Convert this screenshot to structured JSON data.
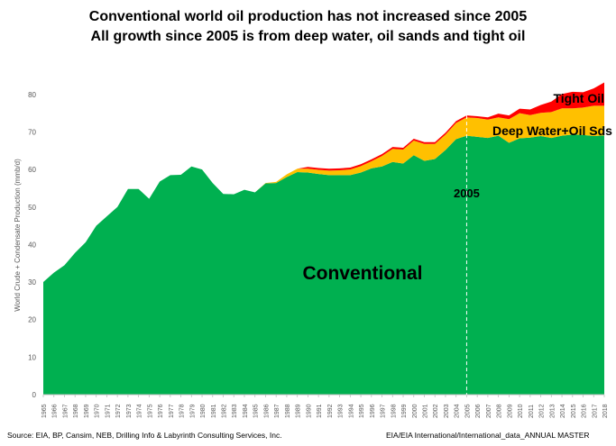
{
  "title_line1": "Conventional world oil production has not increased since 2005",
  "title_line2": "All growth since 2005 is from deep water, oil sands and tight oil",
  "footer_left": "Source:  EIA, BP, Cansim, NEB,  Drilling  Info &  Labyrinth Consulting  Services, Inc.",
  "footer_right": "EIA/EIA International/International_data_ANNUAL  MASTER",
  "chart_data": {
    "type": "area",
    "stacked": true,
    "title": "",
    "xlabel": "",
    "ylabel": "World Crude + Condensate Production  (mmb/d)",
    "ylim": [
      0,
      85
    ],
    "yticks": [
      0,
      10,
      20,
      30,
      40,
      50,
      60,
      70,
      80
    ],
    "x": [
      1965,
      1966,
      1967,
      1968,
      1969,
      1970,
      1971,
      1972,
      1973,
      1974,
      1975,
      1976,
      1977,
      1978,
      1979,
      1980,
      1981,
      1982,
      1983,
      1984,
      1985,
      1986,
      1987,
      1988,
      1989,
      1990,
      1991,
      1992,
      1993,
      1994,
      1995,
      1996,
      1997,
      1998,
      1999,
      2000,
      2001,
      2002,
      2003,
      2004,
      2005,
      2006,
      2007,
      2008,
      2009,
      2010,
      2011,
      2012,
      2013,
      2014,
      2015,
      2016,
      2017,
      2018
    ],
    "series": [
      {
        "name": "Conventional",
        "color": "#00b050",
        "values": [
          30,
          32.5,
          34.5,
          37.8,
          40.6,
          45,
          47.5,
          50,
          54.8,
          54.8,
          52.2,
          56.8,
          58.5,
          58.6,
          60.8,
          60,
          56.4,
          53.5,
          53.4,
          54.6,
          53.9,
          56.3,
          56.4,
          58,
          59.3,
          59.2,
          58.8,
          58.5,
          58.5,
          58.5,
          59.2,
          60.3,
          60.8,
          62,
          61.6,
          63.8,
          62.3,
          62.8,
          65.2,
          68.1,
          69,
          68.7,
          68.4,
          69,
          67.1,
          68.3,
          68.5,
          68.9,
          68.4,
          69,
          69.3,
          69.2,
          68.9,
          69.1
        ]
      },
      {
        "name": "Deep Water+Oil Sds",
        "color": "#ffc000",
        "values": [
          0,
          0,
          0,
          0,
          0,
          0,
          0,
          0,
          0,
          0,
          0,
          0,
          0,
          0,
          0,
          0,
          0,
          0,
          0,
          0,
          0,
          0.1,
          0.3,
          0.7,
          0.9,
          1,
          1.1,
          1.2,
          1.3,
          1.5,
          1.7,
          1.9,
          2.8,
          3.5,
          3.7,
          3.9,
          4.5,
          4,
          4.1,
          4.3,
          4.9,
          5,
          4.9,
          4.9,
          6.3,
          6.7,
          6,
          6.2,
          6.9,
          7.3,
          7,
          7.3,
          8.1,
          7.9
        ]
      },
      {
        "name": "Tight Oil",
        "color": "#ff0000",
        "values": [
          0,
          0,
          0,
          0,
          0,
          0,
          0,
          0,
          0,
          0,
          0,
          0,
          0,
          0,
          0,
          0,
          0,
          0,
          0,
          0,
          0,
          0,
          0,
          0,
          0,
          0.5,
          0.5,
          0.5,
          0.5,
          0.5,
          0.5,
          0.5,
          0.5,
          0.5,
          0.5,
          0.5,
          0.5,
          0.5,
          0.5,
          0.5,
          0.5,
          0.5,
          0.6,
          1,
          1,
          1.2,
          1.5,
          2.1,
          2.8,
          3.8,
          4.4,
          4.1,
          4.6,
          6.2
        ]
      }
    ],
    "annotations": [
      {
        "text": "Conventional",
        "color": "#000000"
      },
      {
        "text": "Deep Water+Oil Sds",
        "color": "#000000"
      },
      {
        "text": "Tight Oil",
        "color": "#000000"
      },
      {
        "text": "2005",
        "color": "#000000",
        "x": 2005
      }
    ],
    "grid": false,
    "legend": "none"
  }
}
